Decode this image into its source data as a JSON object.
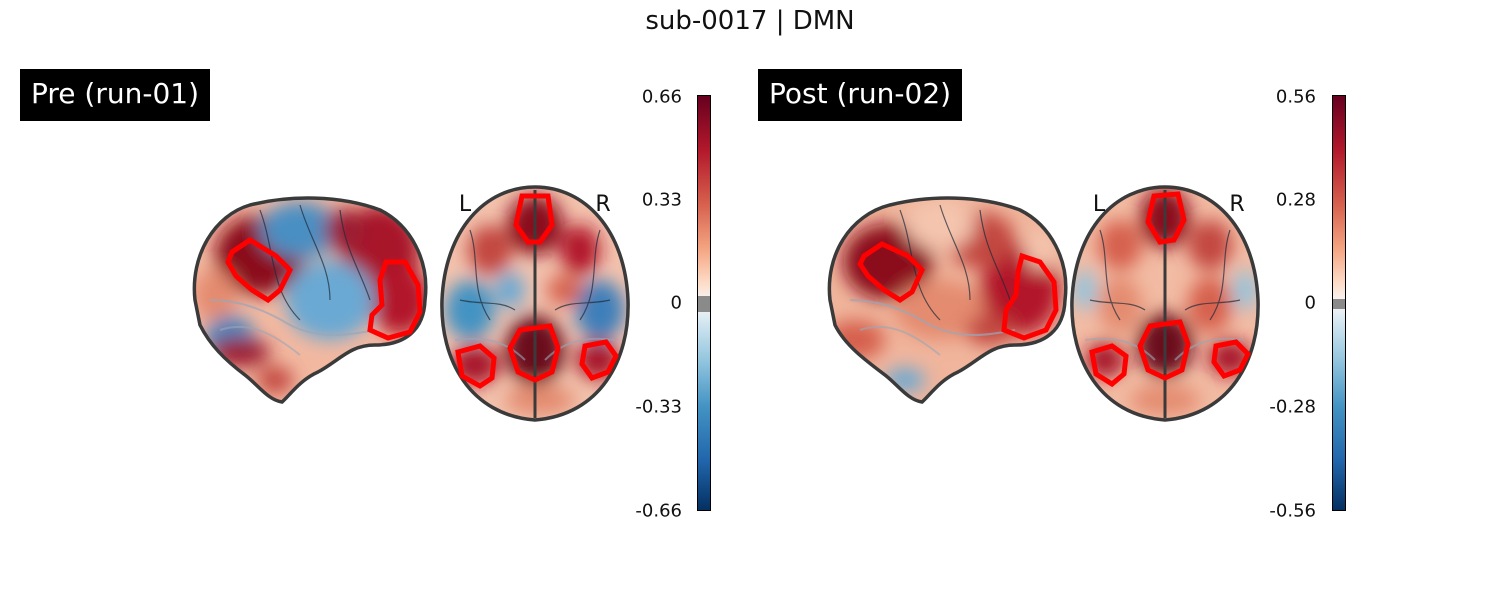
{
  "title": "sub-0017 | DMN",
  "colors": {
    "pos_max": "#67001f",
    "pos_mid": "#d6604d",
    "neutral": "#f7f7f7",
    "neg_mid": "#4393c3",
    "neg_max": "#053061",
    "contour": "#ff0000",
    "outline": "#3a3a3a"
  },
  "panels": [
    {
      "label": "Pre (run-01)",
      "colorbar": {
        "ticks": [
          "0.66",
          "0.33",
          "0",
          "-0.33",
          "-0.66"
        ],
        "vmax": 0.66
      },
      "orientation": {
        "left": "L",
        "right": "R"
      }
    },
    {
      "label": "Post (run-02)",
      "colorbar": {
        "ticks": [
          "0.56",
          "0.28",
          "0",
          "-0.28",
          "-0.56"
        ],
        "vmax": 0.56
      },
      "orientation": {
        "left": "L",
        "right": "R"
      }
    }
  ]
}
